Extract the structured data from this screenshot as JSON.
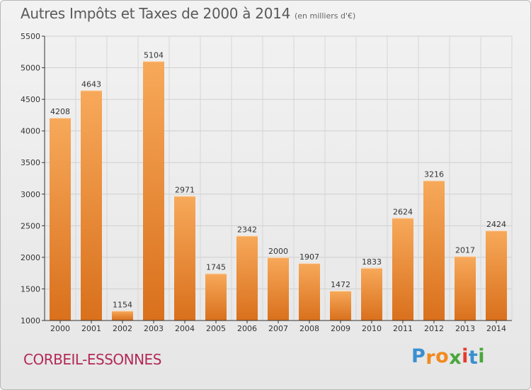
{
  "title": {
    "main": "Autres Impôts et Taxes de 2000 à 2014",
    "unit": "(en milliers d'€)"
  },
  "commune": "CORBEIL-ESSONNES",
  "logo": {
    "letters": [
      "P",
      "r",
      "o",
      "x",
      "i",
      "t",
      "i"
    ],
    "colors": [
      "#3a8fd0",
      "#f28a1e",
      "#f28a1e",
      "#4aa63c",
      "#e63b2e",
      "#3a8fd0",
      "#4aa63c"
    ]
  },
  "colors": {
    "bar_top": "#f7a95a",
    "bar_bottom": "#d9701c",
    "commune_text": "#b22a56"
  },
  "chart_data": {
    "type": "bar",
    "categories": [
      "2000",
      "2001",
      "2002",
      "2003",
      "2004",
      "2005",
      "2006",
      "2007",
      "2008",
      "2009",
      "2010",
      "2011",
      "2012",
      "2013",
      "2014"
    ],
    "values": [
      4208,
      4643,
      1154,
      5104,
      2971,
      1745,
      2342,
      2000,
      1907,
      1472,
      1833,
      2624,
      3216,
      2017,
      2424
    ],
    "ylim": [
      1000,
      5500
    ],
    "yticks": [
      1000,
      1500,
      2000,
      2500,
      3000,
      3500,
      4000,
      4500,
      5000,
      5500
    ],
    "grid": true,
    "title": "Autres Impôts et Taxes de 2000 à 2014",
    "xlabel": "",
    "ylabel": ""
  }
}
